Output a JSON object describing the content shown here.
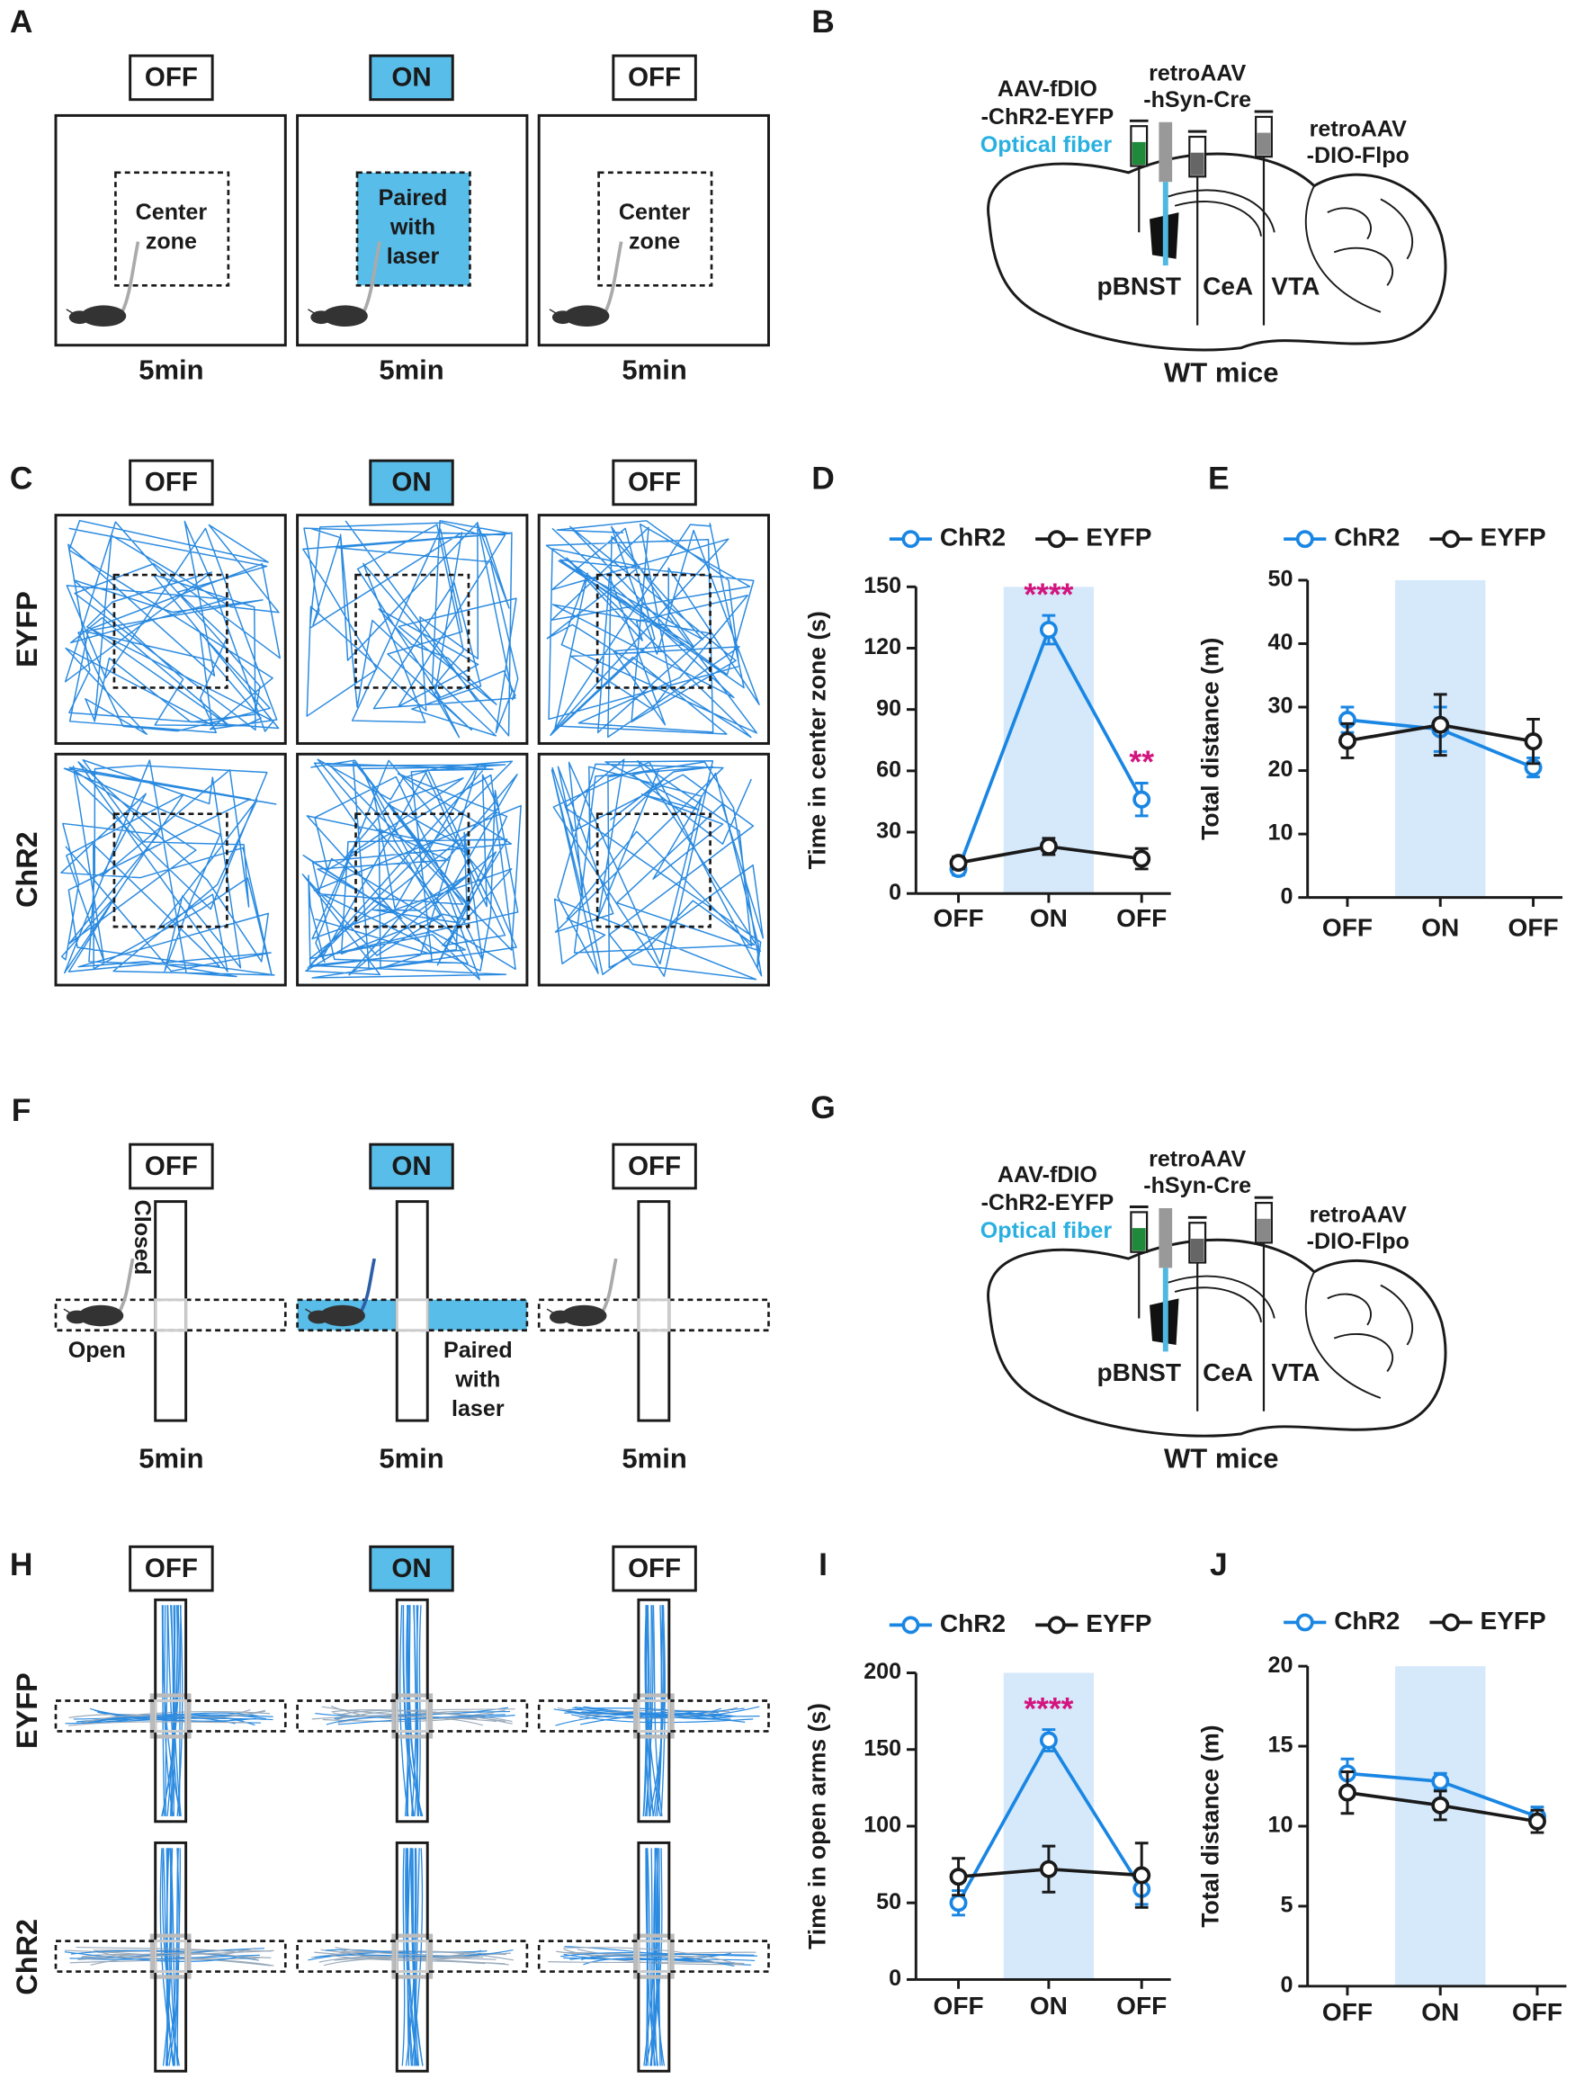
{
  "figure": {
    "panel_a": {
      "label": "A",
      "states": [
        "OFF",
        "ON",
        "OFF"
      ],
      "zones": [
        [
          "Center",
          "zone"
        ],
        [
          "Paired",
          "with",
          "laser"
        ],
        [
          "Center",
          "zone"
        ]
      ],
      "durations": [
        "5min",
        "5min",
        "5min"
      ]
    },
    "panel_b": {
      "label": "B",
      "virus_1": [
        "AAV-fDIO",
        "-ChR2-EYFP"
      ],
      "fiber": "Optical fiber",
      "virus_2": [
        "retroAAV",
        "-hSyn-Cre"
      ],
      "virus_3": [
        "retroAAV",
        "-DIO-Flpo"
      ],
      "regions": [
        "pBNST",
        "CeA",
        "VTA"
      ],
      "caption": "WT mice"
    },
    "panel_c": {
      "label": "C",
      "states": [
        "OFF",
        "ON",
        "OFF"
      ],
      "rows": [
        "EYFP",
        "ChR2"
      ]
    },
    "panel_f": {
      "label": "F",
      "states": [
        "OFF",
        "ON",
        "OFF"
      ],
      "arms": [
        "Closed",
        "Open"
      ],
      "laser": [
        "Paired",
        "with",
        "laser"
      ],
      "durations": [
        "5min",
        "5min",
        "5min"
      ]
    },
    "panel_g": {
      "label": "G",
      "virus_1": [
        "AAV-fDIO",
        "-ChR2-EYFP"
      ],
      "fiber": "Optical fiber",
      "virus_2": [
        "retroAAV",
        "-hSyn-Cre"
      ],
      "virus_3": [
        "retroAAV",
        "-DIO-Flpo"
      ],
      "regions": [
        "pBNST",
        "CeA",
        "VTA"
      ],
      "caption": "WT mice"
    },
    "panel_h": {
      "label": "H",
      "states": [
        "OFF",
        "ON",
        "OFF"
      ],
      "rows": [
        "EYFP",
        "ChR2"
      ]
    }
  },
  "chart_data": [
    {
      "panel_label": "D",
      "type": "line",
      "categories": [
        "OFF",
        "ON",
        "OFF"
      ],
      "series": [
        {
          "name": "ChR2",
          "color": "#1a86e3",
          "values": [
            12,
            129,
            46
          ],
          "errors": [
            3,
            7,
            8
          ]
        },
        {
          "name": "EYFP",
          "color": "#1a1a1a",
          "values": [
            15,
            23,
            17
          ],
          "errors": [
            3,
            4,
            5
          ]
        }
      ],
      "ylabel": "Time in center zone (s)",
      "ylim": [
        0,
        150
      ],
      "yticks": [
        0,
        30,
        60,
        90,
        120,
        150
      ],
      "shade": {
        "category": 1,
        "color": "#d5e9fb"
      },
      "annotations": [
        {
          "text": "****",
          "category": 1,
          "series": 0,
          "color": "#d4147e"
        },
        {
          "text": "**",
          "category": 2,
          "series": 0,
          "color": "#d4147e"
        }
      ]
    },
    {
      "panel_label": "E",
      "type": "line",
      "categories": [
        "OFF",
        "ON",
        "OFF"
      ],
      "series": [
        {
          "name": "ChR2",
          "color": "#1a86e3",
          "values": [
            28,
            26.5,
            20.5
          ],
          "errors": [
            2,
            3.5,
            1.5
          ]
        },
        {
          "name": "EYFP",
          "color": "#1a1a1a",
          "values": [
            24.7,
            27.2,
            24.6
          ],
          "errors": [
            2.7,
            4.8,
            3.5
          ]
        }
      ],
      "ylabel": "Total distance (m)",
      "ylim": [
        0,
        50
      ],
      "yticks": [
        0,
        10,
        20,
        30,
        40,
        50
      ],
      "shade": {
        "category": 1,
        "color": "#d5e9fb"
      },
      "annotations": []
    },
    {
      "panel_label": "I",
      "type": "line",
      "categories": [
        "OFF",
        "ON",
        "OFF"
      ],
      "series": [
        {
          "name": "ChR2",
          "color": "#1a86e3",
          "values": [
            50,
            156,
            59
          ],
          "errors": [
            8,
            7,
            10
          ]
        },
        {
          "name": "EYFP",
          "color": "#1a1a1a",
          "values": [
            67,
            72,
            68
          ],
          "errors": [
            12,
            15,
            21
          ]
        }
      ],
      "ylabel": "Time in open arms (s)",
      "ylim": [
        0,
        200
      ],
      "yticks": [
        0,
        50,
        100,
        150,
        200
      ],
      "shade": {
        "category": 1,
        "color": "#d5e9fb"
      },
      "annotations": [
        {
          "text": "****",
          "category": 1,
          "series": 0,
          "color": "#d4147e"
        }
      ]
    },
    {
      "panel_label": "J",
      "type": "line",
      "categories": [
        "OFF",
        "ON",
        "OFF"
      ],
      "series": [
        {
          "name": "ChR2",
          "color": "#1a86e3",
          "values": [
            13.3,
            12.8,
            10.6
          ],
          "errors": [
            0.9,
            0.5,
            0.6
          ]
        },
        {
          "name": "EYFP",
          "color": "#1a1a1a",
          "values": [
            12.1,
            11.3,
            10.3
          ],
          "errors": [
            1.3,
            0.9,
            0.7
          ]
        }
      ],
      "ylabel": "Total distance (m)",
      "ylim": [
        0,
        20
      ],
      "yticks": [
        0,
        5,
        10,
        15,
        20
      ],
      "shade": {
        "category": 1,
        "color": "#d5e9fb"
      },
      "annotations": []
    }
  ]
}
